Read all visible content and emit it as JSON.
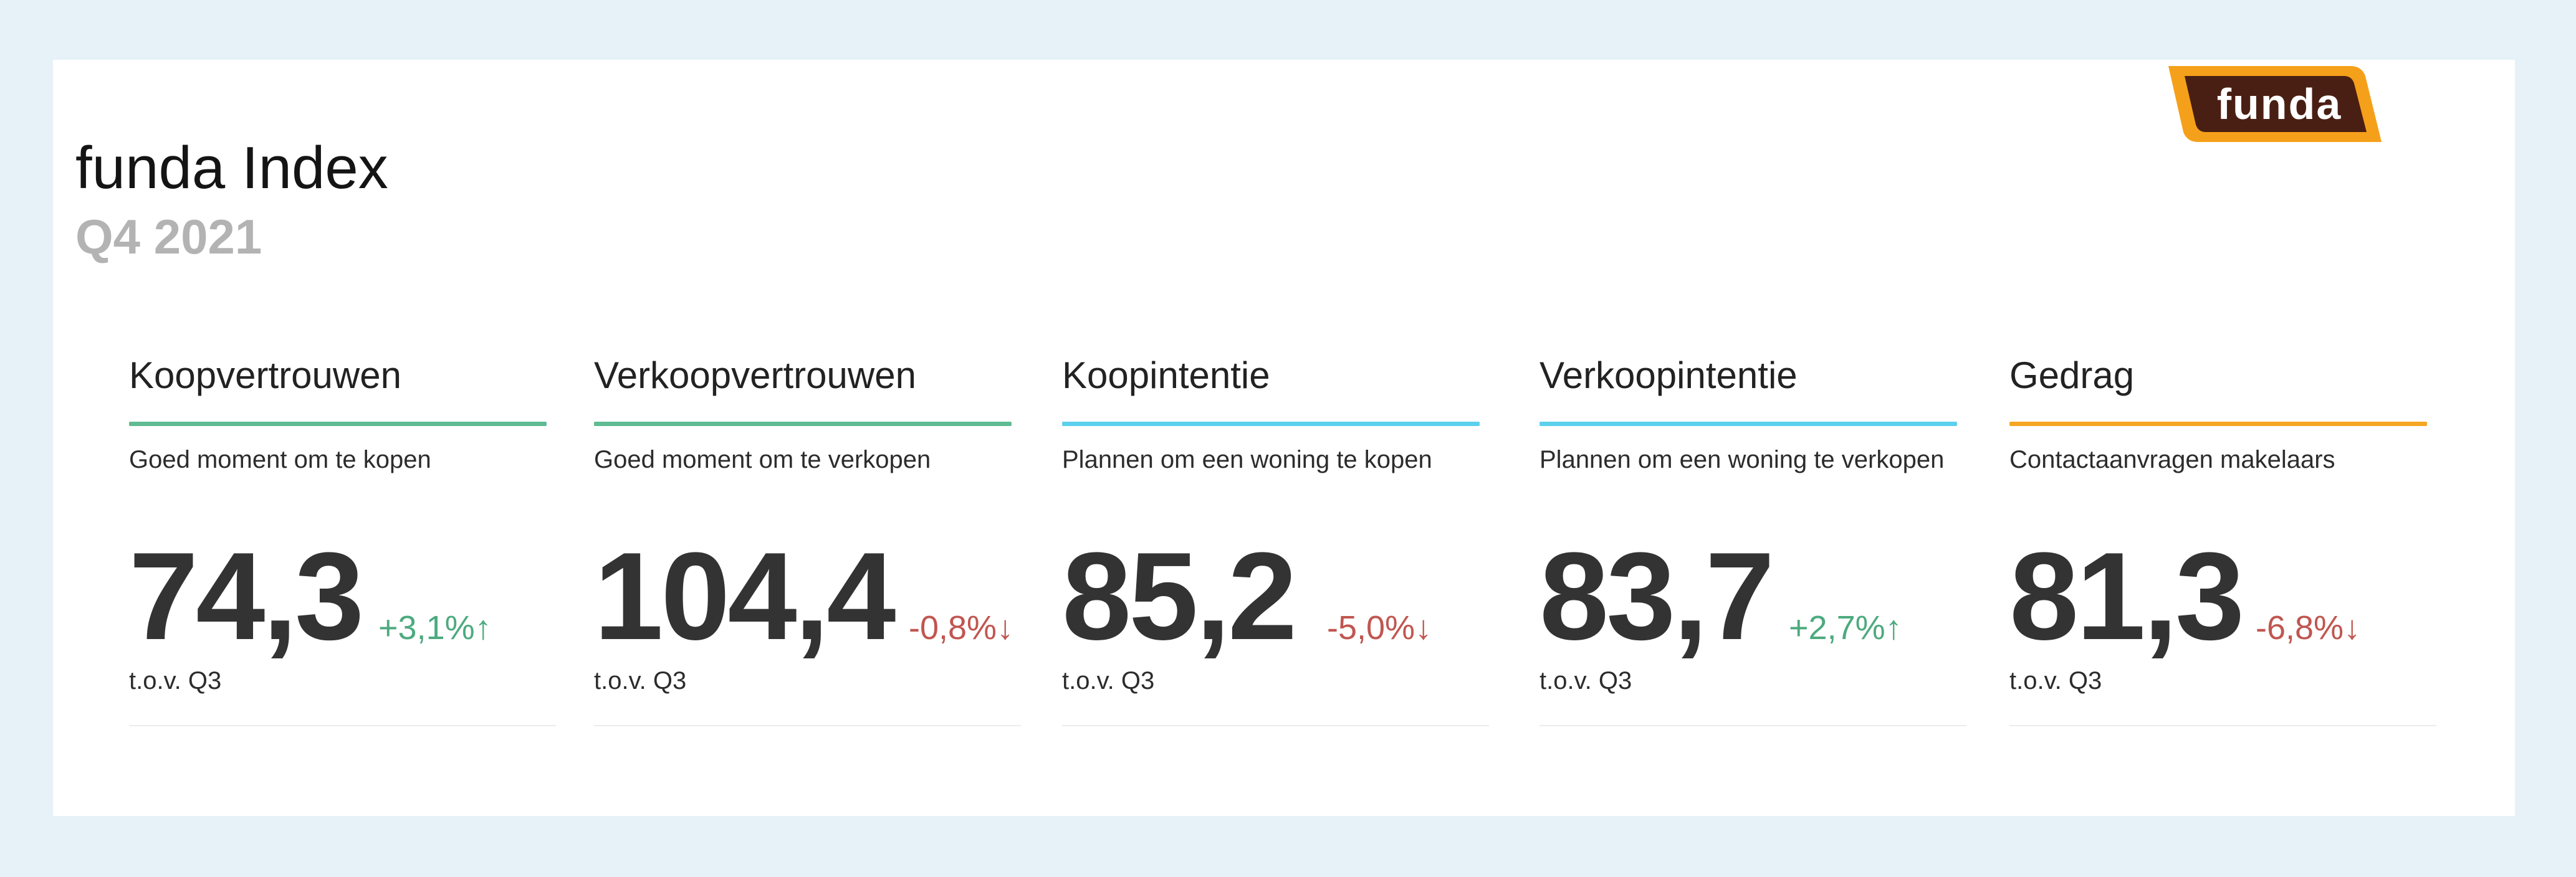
{
  "header": {
    "title": "funda Index",
    "subtitle": "Q4 2021"
  },
  "logo": {
    "text": "funda",
    "colors": {
      "outer": "#f5a01a",
      "inner": "#4a1f13"
    }
  },
  "colors": {
    "green_rule": "#5fbb93",
    "blue_rule": "#5cd0ec",
    "orange_rule": "#f5a623",
    "positive": "#4daa7f",
    "negative": "#c05650"
  },
  "metrics": [
    {
      "title": "Koopvertrouwen",
      "description": "Goed moment om te kopen",
      "value": "74,3",
      "change": "+3,1%↑",
      "direction": "up",
      "comparison": "t.o.v. Q3",
      "rule_color": "#5fbb93"
    },
    {
      "title": "Verkoopvertrouwen",
      "description": "Goed moment om te verkopen",
      "value": "104,4",
      "change": "-0,8%↓",
      "direction": "down",
      "comparison": "t.o.v. Q3",
      "rule_color": "#5fbb93"
    },
    {
      "title": "Koopintentie",
      "description": "Plannen om een woning te kopen",
      "value": "85,2",
      "change": "-5,0%↓",
      "direction": "down",
      "comparison": "t.o.v. Q3",
      "rule_color": "#5cd0ec"
    },
    {
      "title": "Verkoopintentie",
      "description": "Plannen om een woning te verkopen",
      "value": "83,7",
      "change": "+2,7%↑",
      "direction": "up",
      "comparison": "t.o.v. Q3",
      "rule_color": "#5cd0ec"
    },
    {
      "title": "Gedrag",
      "description": "Contactaanvragen makelaars",
      "value": "81,3",
      "change": "-6,8%↓",
      "direction": "down",
      "comparison": "t.o.v. Q3",
      "rule_color": "#f5a623"
    }
  ]
}
